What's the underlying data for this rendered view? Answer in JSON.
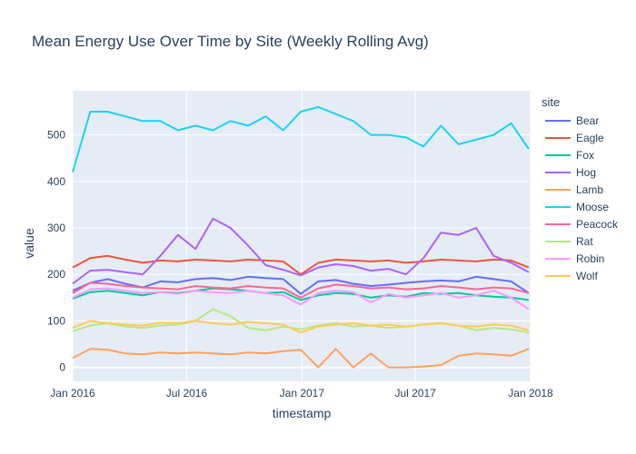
{
  "chart_data": {
    "type": "line",
    "title": "Mean Energy Use Over Time by Site (Weekly Rolling Avg)",
    "xlabel": "timestamp",
    "ylabel": "value",
    "x_range": [
      "2016-01-01",
      "2018-01-01"
    ],
    "ylim": [
      -30,
      595
    ],
    "x_ticks": [
      {
        "date": "2016-01-01",
        "label": "Jan 2016"
      },
      {
        "date": "2016-07-01",
        "label": "Jul 2016"
      },
      {
        "date": "2017-01-01",
        "label": "Jan 2017"
      },
      {
        "date": "2017-07-01",
        "label": "Jul 2017"
      },
      {
        "date": "2018-01-01",
        "label": "Jan 2018"
      }
    ],
    "y_ticks": [
      0,
      100,
      200,
      300,
      400,
      500
    ],
    "legend_title": "site",
    "legend_position": "right",
    "grid": true,
    "plot_background": "#e5ecf6",
    "x": [
      "2016-01-01",
      "2016-01-29",
      "2016-02-26",
      "2016-03-25",
      "2016-04-22",
      "2016-05-20",
      "2016-06-17",
      "2016-07-15",
      "2016-08-12",
      "2016-09-09",
      "2016-10-07",
      "2016-11-04",
      "2016-12-02",
      "2016-12-30",
      "2017-01-27",
      "2017-02-24",
      "2017-03-24",
      "2017-04-21",
      "2017-05-19",
      "2017-06-16",
      "2017-07-14",
      "2017-08-11",
      "2017-09-08",
      "2017-10-06",
      "2017-11-03",
      "2017-12-01",
      "2017-12-29"
    ],
    "series": [
      {
        "name": "Bear",
        "color": "#636efa",
        "values": [
          165,
          182,
          190,
          180,
          172,
          185,
          183,
          190,
          192,
          188,
          195,
          192,
          190,
          158,
          185,
          188,
          180,
          175,
          178,
          182,
          185,
          187,
          185,
          195,
          190,
          185,
          160
        ]
      },
      {
        "name": "Eagle",
        "color": "#ef553b",
        "values": [
          215,
          235,
          240,
          232,
          225,
          230,
          228,
          232,
          230,
          228,
          232,
          230,
          228,
          200,
          225,
          232,
          230,
          228,
          230,
          225,
          228,
          232,
          230,
          228,
          232,
          230,
          215
        ]
      },
      {
        "name": "Fox",
        "color": "#00cc96",
        "values": [
          148,
          162,
          165,
          160,
          155,
          162,
          160,
          165,
          170,
          168,
          165,
          160,
          162,
          145,
          155,
          160,
          158,
          150,
          155,
          152,
          160,
          158,
          160,
          155,
          152,
          150,
          145
        ]
      },
      {
        "name": "Hog",
        "color": "#ab63fa",
        "values": [
          180,
          208,
          210,
          205,
          200,
          240,
          285,
          255,
          320,
          300,
          262,
          220,
          210,
          198,
          215,
          222,
          218,
          208,
          212,
          200,
          235,
          290,
          285,
          300,
          240,
          225,
          205
        ]
      },
      {
        "name": "Lamb",
        "color": "#ffa15a",
        "values": [
          20,
          40,
          38,
          30,
          28,
          32,
          30,
          32,
          30,
          28,
          32,
          30,
          35,
          38,
          0,
          40,
          0,
          30,
          0,
          0,
          2,
          5,
          25,
          30,
          28,
          25,
          40
        ]
      },
      {
        "name": "Moose",
        "color": "#19d3f3",
        "values": [
          420,
          550,
          550,
          540,
          530,
          530,
          510,
          520,
          510,
          530,
          520,
          540,
          510,
          550,
          560,
          545,
          530,
          500,
          500,
          495,
          475,
          520,
          480,
          490,
          500,
          525,
          470
        ]
      },
      {
        "name": "Peacock",
        "color": "#ff6692",
        "values": [
          160,
          182,
          180,
          175,
          172,
          170,
          168,
          175,
          172,
          170,
          175,
          172,
          170,
          150,
          170,
          178,
          175,
          170,
          172,
          168,
          170,
          175,
          172,
          168,
          172,
          170,
          160
        ]
      },
      {
        "name": "Rat",
        "color": "#b6e880",
        "values": [
          78,
          90,
          95,
          88,
          85,
          90,
          92,
          100,
          125,
          110,
          85,
          80,
          88,
          82,
          90,
          95,
          88,
          90,
          85,
          88,
          92,
          95,
          90,
          80,
          85,
          82,
          75
        ]
      },
      {
        "name": "Robin",
        "color": "#ff97ff",
        "values": [
          150,
          168,
          170,
          165,
          160,
          162,
          158,
          165,
          162,
          160,
          165,
          160,
          155,
          135,
          160,
          165,
          162,
          140,
          158,
          150,
          155,
          160,
          150,
          155,
          165,
          150,
          125
        ]
      },
      {
        "name": "Wolf",
        "color": "#fecb52",
        "values": [
          85,
          100,
          95,
          92,
          90,
          96,
          95,
          100,
          95,
          92,
          98,
          95,
          92,
          75,
          88,
          92,
          95,
          90,
          92,
          88,
          92,
          95,
          90,
          88,
          92,
          90,
          80
        ]
      }
    ]
  }
}
